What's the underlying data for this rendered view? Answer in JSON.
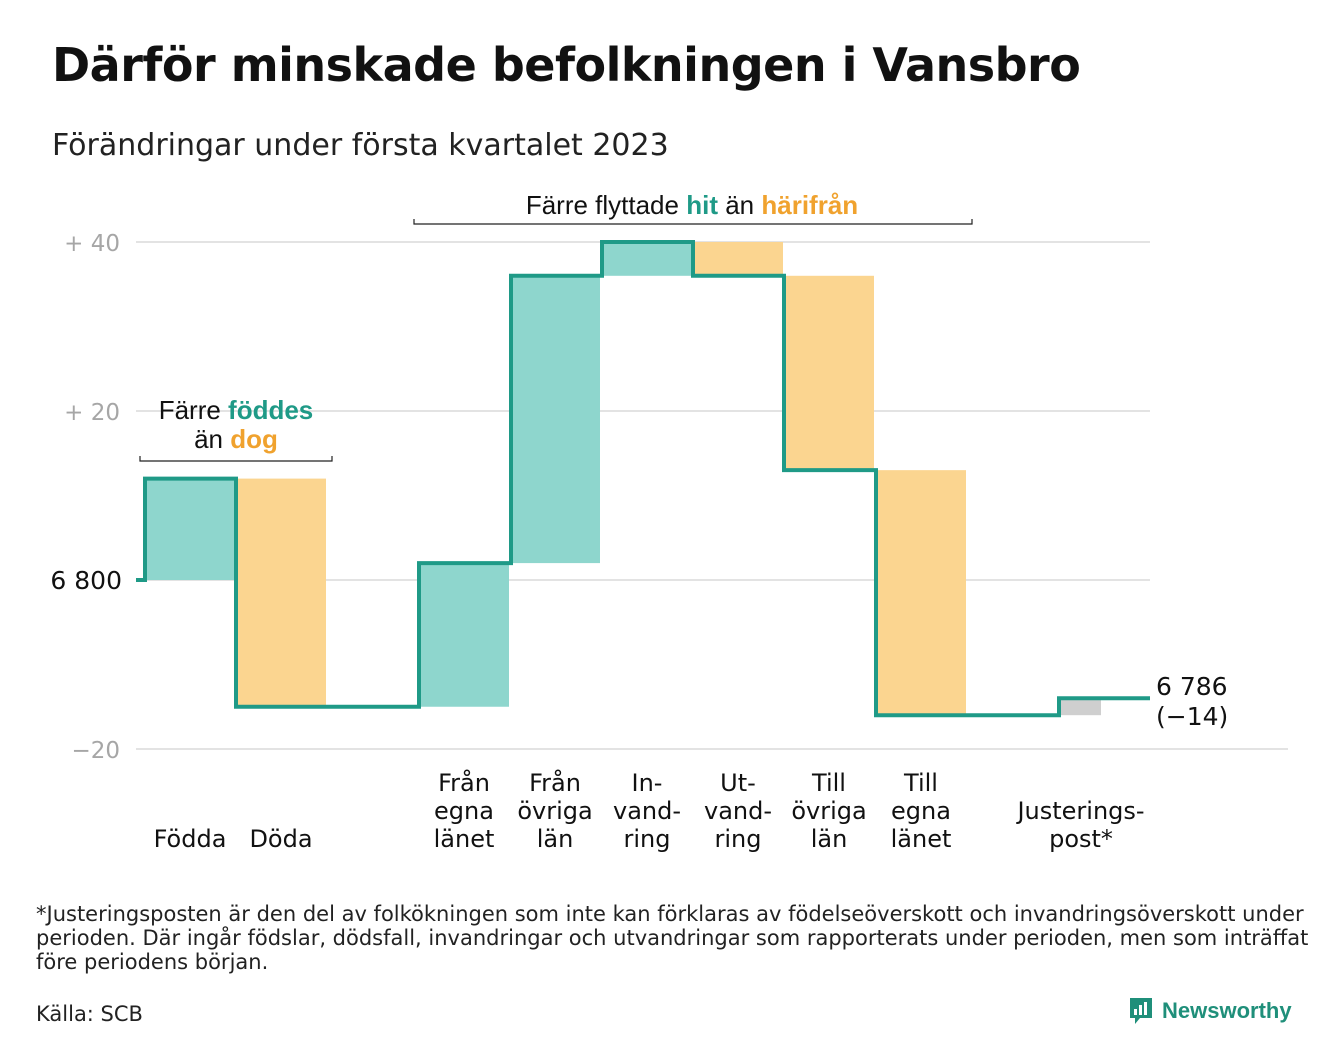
{
  "header": {
    "title": "Därför minskade befolkningen i Vansbro",
    "subtitle": "Förändringar under första kvartalet 2023"
  },
  "chart_data": {
    "type": "waterfall",
    "start_value": 6800,
    "end_value": 6786,
    "steps": [
      {
        "label_lines": [
          "Födda"
        ],
        "delta": 12,
        "kind": "in"
      },
      {
        "label_lines": [
          "Döda"
        ],
        "delta": -27,
        "kind": "out"
      },
      {
        "label_lines": [
          "Från",
          "egna",
          "länet"
        ],
        "delta": 17,
        "kind": "in"
      },
      {
        "label_lines": [
          "Från",
          "övriga",
          "län"
        ],
        "delta": 34,
        "kind": "in"
      },
      {
        "label_lines": [
          "In-",
          "vand-",
          "ring"
        ],
        "delta": 4,
        "kind": "in"
      },
      {
        "label_lines": [
          "Ut-",
          "vand-",
          "ring"
        ],
        "delta": -4,
        "kind": "out"
      },
      {
        "label_lines": [
          "Till",
          "övriga",
          "län"
        ],
        "delta": -23,
        "kind": "out"
      },
      {
        "label_lines": [
          "Till",
          "egna",
          "länet"
        ],
        "delta": -29,
        "kind": "out"
      },
      {
        "label_lines": [
          "Justerings-",
          "post*"
        ],
        "delta": 2,
        "kind": "adjust"
      }
    ],
    "y_ticks": [
      {
        "value": 40,
        "label": "+ 40"
      },
      {
        "value": 20,
        "label": "+ 20"
      },
      {
        "value": 0,
        "label": "6 800"
      },
      {
        "value": -20,
        "label": "−20"
      }
    ],
    "ylim": [
      -20,
      40
    ],
    "end_label": [
      "6 786",
      "(−14)"
    ],
    "annotations": {
      "births": {
        "line1": "Färre",
        "line1_em": "föddes",
        "line2": "än",
        "line2_em": "dog"
      },
      "moves": {
        "text": "Färre flyttade",
        "em1": "hit",
        "mid": "än",
        "em2": "härifrån"
      }
    },
    "grid": true,
    "colors": {
      "in": "#8ed6cd",
      "out": "#fbd590",
      "adjust": "#cfcfcf",
      "line": "#1f9a87",
      "em_in": "#1f9a87",
      "em_out": "#f0a22e",
      "grid": "#e3e3e3",
      "tick": "#a6a6a6"
    }
  },
  "footer": {
    "footnote": "*Justeringsposten är den del av folkökningen som inte kan förklaras av födelseöverskott och invandringsöverskott under perioden. Där ingår födslar, dödsfall, invandringar och utvandringar som rapporterats under perioden, men som inträffat före periodens början.",
    "source": "Källa: SCB",
    "brand": "Newsworthy",
    "brand_icon": "newsworthy-logo-icon"
  }
}
